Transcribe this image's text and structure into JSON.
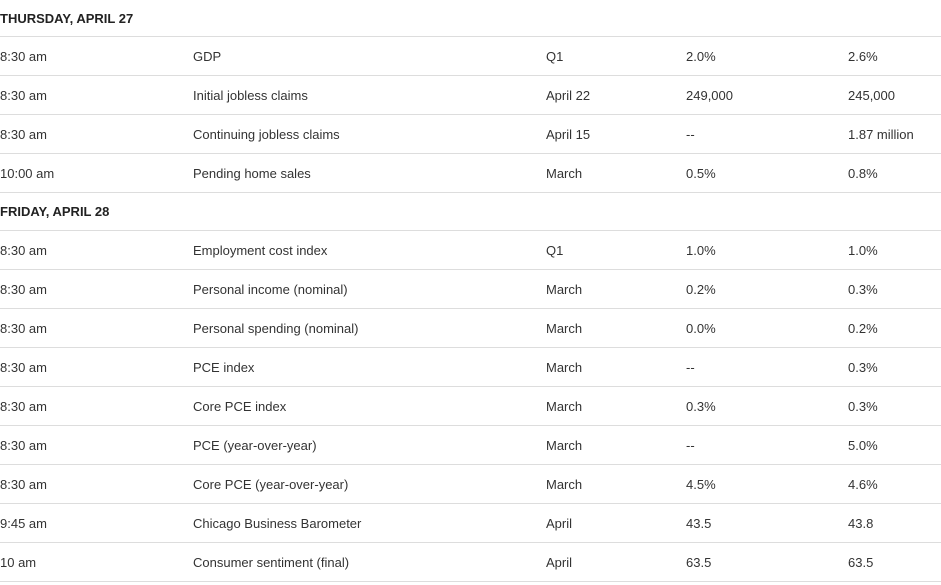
{
  "days": [
    {
      "header": "THURSDAY, APRIL 27",
      "rows": [
        {
          "time": "8:30 am",
          "event": "GDP",
          "period": "Q1",
          "forecast": "2.0%",
          "previous": "2.6%"
        },
        {
          "time": "8:30 am",
          "event": "Initial jobless claims",
          "period": "April 22",
          "forecast": "249,000",
          "previous": "245,000"
        },
        {
          "time": "8:30 am",
          "event": "Continuing jobless claims",
          "period": "April 15",
          "forecast": "--",
          "previous": "1.87 million"
        },
        {
          "time": "10:00 am",
          "event": "Pending home sales",
          "period": "March",
          "forecast": "0.5%",
          "previous": "0.8%"
        }
      ]
    },
    {
      "header": "FRIDAY, APRIL 28",
      "rows": [
        {
          "time": "8:30 am",
          "event": "Employment cost index",
          "period": "Q1",
          "forecast": "1.0%",
          "previous": "1.0%"
        },
        {
          "time": "8:30 am",
          "event": "Personal income (nominal)",
          "period": "March",
          "forecast": "0.2%",
          "previous": "0.3%"
        },
        {
          "time": "8:30 am",
          "event": "Personal spending (nominal)",
          "period": "March",
          "forecast": "0.0%",
          "previous": "0.2%"
        },
        {
          "time": "8:30 am",
          "event": "PCE index",
          "period": "March",
          "forecast": "--",
          "previous": "0.3%"
        },
        {
          "time": "8:30 am",
          "event": "Core PCE index",
          "period": "March",
          "forecast": "0.3%",
          "previous": "0.3%"
        },
        {
          "time": "8:30 am",
          "event": "PCE (year-over-year)",
          "period": "March",
          "forecast": "--",
          "previous": "5.0%"
        },
        {
          "time": "8:30 am",
          "event": "Core PCE (year-over-year)",
          "period": "March",
          "forecast": "4.5%",
          "previous": "4.6%"
        },
        {
          "time": "9:45 am",
          "event": "Chicago Business Barometer",
          "period": "April",
          "forecast": "43.5",
          "previous": "43.8"
        },
        {
          "time": "10 am",
          "event": "Consumer sentiment (final)",
          "period": "April",
          "forecast": "63.5",
          "previous": "63.5"
        }
      ]
    }
  ]
}
